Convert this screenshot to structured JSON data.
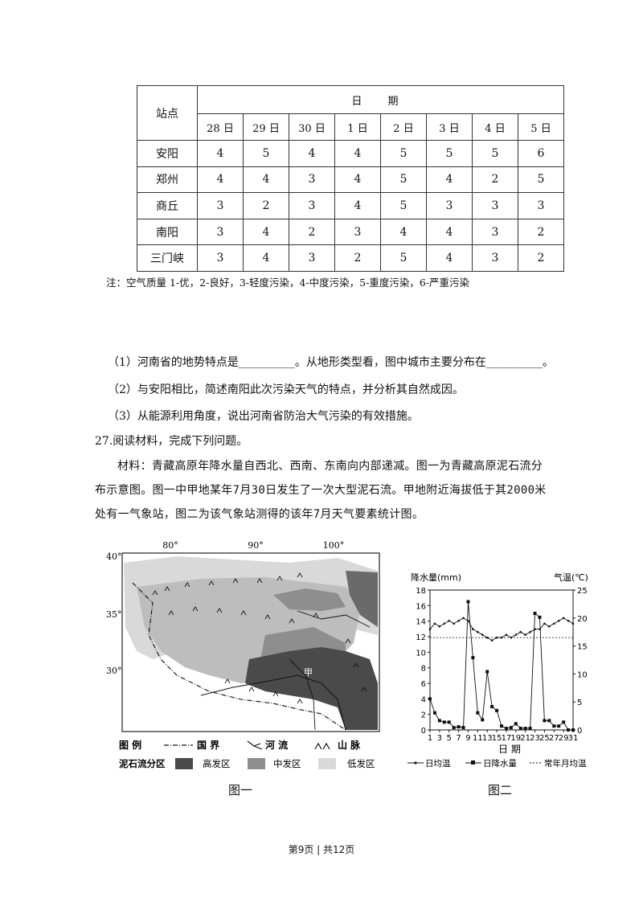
{
  "table": {
    "station_header": "站点",
    "date_header": "日 期",
    "dates": [
      "28 日",
      "29 日",
      "30 日",
      "1 日",
      "2 日",
      "3 日",
      "4 日",
      "5 日"
    ],
    "rows": [
      {
        "station": "安阳",
        "values": [
          "4",
          "5",
          "4",
          "4",
          "5",
          "5",
          "5",
          "6"
        ]
      },
      {
        "station": "郑州",
        "values": [
          "4",
          "4",
          "3",
          "4",
          "5",
          "4",
          "2",
          "5"
        ]
      },
      {
        "station": "商丘",
        "values": [
          "3",
          "2",
          "3",
          "4",
          "5",
          "3",
          "3",
          "3"
        ]
      },
      {
        "station": "南阳",
        "values": [
          "3",
          "4",
          "2",
          "3",
          "4",
          "4",
          "3",
          "2"
        ]
      },
      {
        "station": "三门峡",
        "values": [
          "3",
          "4",
          "3",
          "2",
          "5",
          "4",
          "3",
          "2"
        ]
      }
    ],
    "note": "注：空气质量 1-优，2-良好，3-轻度污染，4-中度污染，5-重度污染，6-严重污染"
  },
  "questions": {
    "q1": "（1）河南省的地势特点是__________。从地形类型看，图中城市主要分布在__________。",
    "q2": "（2）与安阳相比，简述南阳此次污染天气的特点，并分析其自然成因。",
    "q3": "（3）从能源利用角度，说出河南省防治大气污染的有效措施。"
  },
  "q27": {
    "heading": "27.阅读材料，完成下列问题。",
    "material": "材料：青藏高原年降水量自西北、西南、东南向内部递减。图一为青藏高原泥石流分布示意图。图一中甲地某年7月30日发生了一次大型泥石流。甲地附近海拔低于其2000米处有一气象站，图二为该气象站测得的该年7月天气要素统计图。"
  },
  "map": {
    "lon_labels": [
      "80°",
      "90°",
      "100°"
    ],
    "lat_labels": [
      "40°",
      "35°",
      "30°"
    ],
    "place_label": "甲",
    "legend_title": "图 例",
    "legend_border": "国 界",
    "legend_river": "河 流",
    "legend_mountain": "山 脉",
    "legend_zone_title": "泥石流分区",
    "legend_high": "高发区",
    "legend_mid": "中发区",
    "legend_low": "低发区",
    "caption": "图一",
    "colors": {
      "high": "#4a4a4a",
      "mid": "#8e8e8e",
      "low": "#d9d9d9",
      "plateau": "#bdbdbd"
    }
  },
  "chart_data": {
    "type": "line",
    "y_left_label": "降水量(mm)",
    "y_right_label": "气温(℃)",
    "x_label": "日 期",
    "caption": "图二",
    "x_ticks": [
      1,
      3,
      5,
      7,
      9,
      11,
      13,
      15,
      17,
      19,
      21,
      23,
      25,
      27,
      29,
      31
    ],
    "y_left_ticks": [
      0,
      2,
      4,
      6,
      8,
      10,
      12,
      14,
      16,
      18
    ],
    "y_right_ticks": [
      0,
      5,
      10,
      15,
      20,
      25
    ],
    "ylim_left": [
      0,
      18
    ],
    "ylim_right": [
      0,
      25
    ],
    "series": [
      {
        "name": "日均温",
        "axis": "right",
        "x": [
          1,
          2,
          3,
          4,
          5,
          6,
          7,
          8,
          9,
          10,
          11,
          12,
          13,
          14,
          15,
          16,
          17,
          18,
          19,
          20,
          21,
          22,
          23,
          24,
          25,
          26,
          27,
          28,
          29,
          30,
          31
        ],
        "values": [
          18,
          19,
          18.5,
          19,
          19.5,
          19,
          19.5,
          20,
          19.5,
          18,
          17.5,
          17,
          16.5,
          16,
          16.5,
          16.5,
          17,
          16.5,
          17,
          17.5,
          17,
          17.5,
          18,
          18,
          19,
          18.5,
          19,
          19.5,
          20,
          19.5,
          19
        ]
      },
      {
        "name": "日降水量",
        "axis": "left",
        "x": [
          1,
          2,
          3,
          4,
          5,
          6,
          7,
          8,
          9,
          10,
          11,
          12,
          13,
          14,
          15,
          16,
          17,
          18,
          19,
          20,
          21,
          22,
          23,
          24,
          25,
          26,
          27,
          28,
          29,
          30,
          31
        ],
        "values": [
          4,
          2.2,
          1.2,
          1,
          1,
          0.3,
          0.4,
          0.3,
          16.5,
          9.3,
          2.2,
          1.3,
          7.5,
          3,
          2.5,
          0.5,
          0.2,
          0.3,
          0.8,
          0.2,
          0.2,
          0.2,
          15,
          14.5,
          1.2,
          1.2,
          0.5,
          0.5,
          1,
          0,
          0
        ]
      },
      {
        "name": "常年月均温",
        "axis": "right",
        "constant": 16.5
      }
    ]
  },
  "footer": "第9页 | 共12页"
}
